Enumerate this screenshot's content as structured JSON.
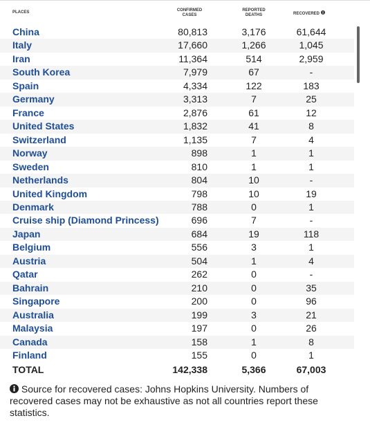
{
  "table": {
    "header": [
      "PLACES",
      "CONFIRMED CASES",
      "REPORTED DEATHS",
      "RECOVERED"
    ],
    "rows": [
      [
        "China",
        "80,813",
        "3,176",
        "61,644"
      ],
      [
        "Italy",
        "17,660",
        "1,266",
        "1,045"
      ],
      [
        "Iran",
        "11,364",
        "514",
        "2,959"
      ],
      [
        "South Korea",
        "7,979",
        "67",
        "-"
      ],
      [
        "Spain",
        "4,334",
        "122",
        "183"
      ],
      [
        "Germany",
        "3,313",
        "7",
        "25"
      ],
      [
        "France",
        "2,876",
        "61",
        "12"
      ],
      [
        "United States",
        "1,832",
        "41",
        "8"
      ],
      [
        "Switzerland",
        "1,135",
        "7",
        "4"
      ],
      [
        "Norway",
        "898",
        "1",
        "1"
      ],
      [
        "Sweden",
        "810",
        "1",
        "1"
      ],
      [
        "Netherlands",
        "804",
        "10",
        "-"
      ],
      [
        "United Kingdom",
        "798",
        "10",
        "19"
      ],
      [
        "Denmark",
        "788",
        "0",
        "1"
      ],
      [
        "Cruise ship (Diamond Princess)",
        "696",
        "7",
        "-"
      ],
      [
        "Japan",
        "684",
        "19",
        "118"
      ],
      [
        "Belgium",
        "556",
        "3",
        "1"
      ],
      [
        "Austria",
        "504",
        "1",
        "4"
      ],
      [
        "Qatar",
        "262",
        "0",
        "-"
      ],
      [
        "Bahrain",
        "210",
        "0",
        "35"
      ],
      [
        "Singapore",
        "200",
        "0",
        "96"
      ],
      [
        "Australia",
        "199",
        "3",
        "21"
      ],
      [
        "Malaysia",
        "197",
        "0",
        "26"
      ],
      [
        "Canada",
        "158",
        "1",
        "8"
      ],
      [
        "Finland",
        "155",
        "0",
        "1"
      ]
    ],
    "total": [
      "TOTAL",
      "142,338",
      "5,366",
      "67,003"
    ]
  },
  "note": "Source for recovered cases: Johns Hopkins University. Numbers of recovered cases may not be exhaustive as not all countries report these statistics."
}
